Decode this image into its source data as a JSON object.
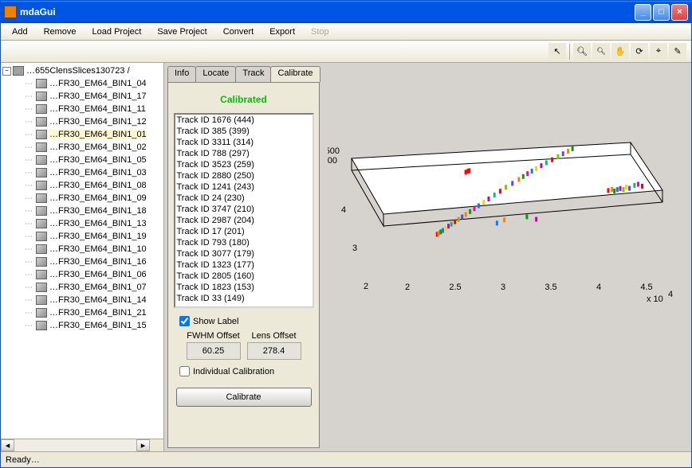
{
  "window": {
    "title": "mdaGui"
  },
  "menu": {
    "items": [
      "Add",
      "Remove",
      "Load Project",
      "Save Project",
      "Convert",
      "Export",
      "Stop"
    ],
    "disabled_idx": 6
  },
  "toolbar": {
    "icons": [
      "pointer-icon",
      "zoom-in-icon",
      "zoom-out-icon",
      "pan-icon",
      "rotate-icon",
      "data-cursor-icon",
      "brush-icon"
    ]
  },
  "tree": {
    "root": "…655ClensSlices130723 /",
    "items": [
      "…FR30_EM64_BIN1_04",
      "…FR30_EM64_BIN1_17",
      "…FR30_EM64_BIN1_11",
      "…FR30_EM64_BIN1_12",
      "…FR30_EM64_BIN1_01",
      "…FR30_EM64_BIN1_02",
      "…FR30_EM64_BIN1_05",
      "…FR30_EM64_BIN1_03",
      "…FR30_EM64_BIN1_08",
      "…FR30_EM64_BIN1_09",
      "…FR30_EM64_BIN1_18",
      "…FR30_EM64_BIN1_13",
      "…FR30_EM64_BIN1_19",
      "…FR30_EM64_BIN1_10",
      "…FR30_EM64_BIN1_16",
      "…FR30_EM64_BIN1_06",
      "…FR30_EM64_BIN1_07",
      "…FR30_EM64_BIN1_14",
      "…FR30_EM64_BIN1_21",
      "…FR30_EM64_BIN1_15"
    ],
    "selected_idx": 4
  },
  "tabs": {
    "items": [
      "Info",
      "Locate",
      "Track",
      "Calibrate"
    ],
    "active_idx": 3
  },
  "calibrate": {
    "status": "Calibrated",
    "tracks": [
      "Track ID 1676 (444)",
      "Track ID 385 (399)",
      "Track ID 3311 (314)",
      "Track ID 788 (297)",
      "Track ID 3523 (259)",
      "Track ID 2880 (250)",
      "Track ID 1241 (243)",
      "Track ID 24 (230)",
      "Track ID 3747 (210)",
      "Track ID 2987 (204)",
      "Track ID 17 (201)",
      "Track ID 793 (180)",
      "Track ID 3077 (179)",
      "Track ID 1323 (177)",
      "Track ID 2805 (160)",
      "Track ID 1823 (153)",
      "Track ID 33 (149)"
    ],
    "show_label": "Show Label",
    "show_label_checked": true,
    "fwhm_label": "FWHM Offset",
    "fwhm_value": "60.25",
    "lens_label": "Lens Offset",
    "lens_value": "278.4",
    "individual_label": "Individual Calibration",
    "individual_checked": false,
    "button": "Calibrate"
  },
  "plot": {
    "z_tick": "500",
    "y_ticks": [
      "4",
      "3",
      "2"
    ],
    "x_ticks": [
      "2",
      "2.5",
      "3",
      "3.5",
      "4",
      "4.5"
    ],
    "x_exp": "x 10",
    "x_exp_sup": "4",
    "box_fill": "#ffffff",
    "box_stroke": "#000000",
    "bg": "#d6d3ce",
    "scatter_colors": [
      "#ff0000",
      "#ff8000",
      "#ffd000",
      "#80c000",
      "#00a000",
      "#00c080",
      "#0080ff",
      "#6040ff",
      "#c000c0",
      "#ff00a0"
    ],
    "points": [
      {
        "x": 80,
        "y": 195,
        "c": "#ff0000"
      },
      {
        "x": 82,
        "y": 193,
        "c": "#ff8000"
      },
      {
        "x": 85,
        "y": 190,
        "c": "#00a000"
      },
      {
        "x": 88,
        "y": 187,
        "c": "#0080ff"
      },
      {
        "x": 92,
        "y": 183,
        "c": "#ffd000"
      },
      {
        "x": 96,
        "y": 178,
        "c": "#c000c0"
      },
      {
        "x": 100,
        "y": 174,
        "c": "#00c080"
      },
      {
        "x": 105,
        "y": 169,
        "c": "#ff0000"
      },
      {
        "x": 110,
        "y": 164,
        "c": "#80c000"
      },
      {
        "x": 115,
        "y": 159,
        "c": "#6040ff"
      },
      {
        "x": 120,
        "y": 154,
        "c": "#ff8000"
      },
      {
        "x": 126,
        "y": 148,
        "c": "#00a000"
      },
      {
        "x": 132,
        "y": 142,
        "c": "#ff00a0"
      },
      {
        "x": 138,
        "y": 136,
        "c": "#0080ff"
      },
      {
        "x": 145,
        "y": 129,
        "c": "#ffd000"
      },
      {
        "x": 152,
        "y": 122,
        "c": "#c000c0"
      },
      {
        "x": 160,
        "y": 114,
        "c": "#00c080"
      },
      {
        "x": 168,
        "y": 106,
        "c": "#ff0000"
      },
      {
        "x": 176,
        "y": 98,
        "c": "#80c000"
      },
      {
        "x": 185,
        "y": 90,
        "c": "#6040ff"
      },
      {
        "x": 194,
        "y": 82,
        "c": "#ff8000"
      },
      {
        "x": 200,
        "y": 76,
        "c": "#00a000"
      },
      {
        "x": 206,
        "y": 70,
        "c": "#ff00a0"
      },
      {
        "x": 212,
        "y": 65,
        "c": "#0080ff"
      },
      {
        "x": 218,
        "y": 60,
        "c": "#ffd000"
      },
      {
        "x": 225,
        "y": 54,
        "c": "#c000c0"
      },
      {
        "x": 232,
        "y": 48,
        "c": "#00c080"
      },
      {
        "x": 240,
        "y": 42,
        "c": "#ff0000"
      },
      {
        "x": 248,
        "y": 36,
        "c": "#80c000"
      },
      {
        "x": 255,
        "y": 30,
        "c": "#6040ff"
      },
      {
        "x": 262,
        "y": 25,
        "c": "#ff8000"
      },
      {
        "x": 268,
        "y": 20,
        "c": "#00a000"
      },
      {
        "x": 125,
        "y": 58,
        "c": "#ff0000"
      },
      {
        "x": 128,
        "y": 56,
        "c": "#ff0000"
      },
      {
        "x": 130,
        "y": 55,
        "c": "#ff0000"
      },
      {
        "x": 310,
        "y": 120,
        "c": "#ff0000"
      },
      {
        "x": 315,
        "y": 118,
        "c": "#ff8000"
      },
      {
        "x": 318,
        "y": 122,
        "c": "#00a000"
      },
      {
        "x": 322,
        "y": 119,
        "c": "#0080ff"
      },
      {
        "x": 326,
        "y": 117,
        "c": "#c000c0"
      },
      {
        "x": 330,
        "y": 120,
        "c": "#80c000"
      },
      {
        "x": 334,
        "y": 115,
        "c": "#ffd000"
      },
      {
        "x": 338,
        "y": 118,
        "c": "#6040ff"
      },
      {
        "x": 345,
        "y": 112,
        "c": "#00c080"
      },
      {
        "x": 350,
        "y": 110,
        "c": "#ff00a0"
      },
      {
        "x": 355,
        "y": 115,
        "c": "#ff0000"
      },
      {
        "x": 212,
        "y": 175,
        "c": "#c000c0"
      },
      {
        "x": 200,
        "y": 168,
        "c": "#00a000"
      },
      {
        "x": 160,
        "y": 178,
        "c": "#0080ff"
      },
      {
        "x": 170,
        "y": 172,
        "c": "#ff8000"
      }
    ]
  },
  "status": {
    "text": "Ready…"
  }
}
